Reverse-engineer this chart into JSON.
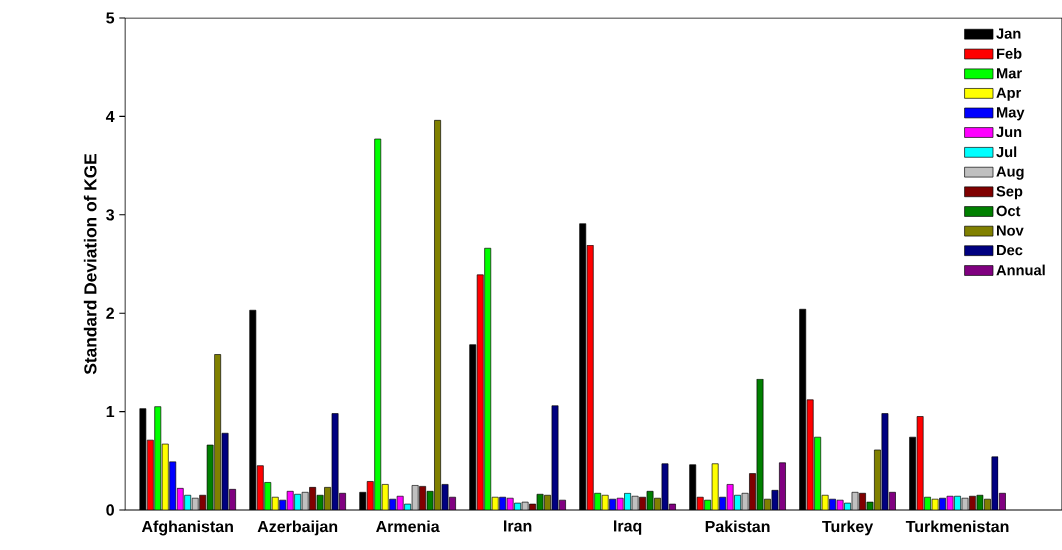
{
  "chart_data": {
    "type": "bar",
    "ylabel": "Standard Deviation of KGE",
    "categories": [
      "Afghanistan",
      "Azerbaijan",
      "Armenia",
      "Iran",
      "Iraq",
      "Pakistan",
      "Turkey",
      "Turkmenistan"
    ],
    "ylim": [
      0,
      5
    ],
    "yticks": [
      0,
      1,
      2,
      3,
      4,
      5
    ],
    "legend": "top right",
    "series": [
      {
        "name": "Jan",
        "color": "#000000",
        "values": [
          1.03,
          2.03,
          0.18,
          1.68,
          2.91,
          0.46,
          2.04,
          0.74
        ]
      },
      {
        "name": "Feb",
        "color": "#ff0000",
        "values": [
          0.71,
          0.45,
          0.29,
          2.39,
          2.69,
          0.13,
          1.12,
          0.95
        ]
      },
      {
        "name": "Mar",
        "color": "#00ff00",
        "values": [
          1.05,
          0.28,
          3.77,
          2.66,
          0.17,
          0.1,
          0.74,
          0.13
        ]
      },
      {
        "name": "Apr",
        "color": "#ffff00",
        "values": [
          0.67,
          0.13,
          0.26,
          0.13,
          0.15,
          0.47,
          0.15,
          0.11
        ]
      },
      {
        "name": "May",
        "color": "#0000ff",
        "values": [
          0.49,
          0.1,
          0.11,
          0.13,
          0.11,
          0.13,
          0.11,
          0.12
        ]
      },
      {
        "name": "Jun",
        "color": "#ff00ff",
        "values": [
          0.22,
          0.19,
          0.14,
          0.12,
          0.12,
          0.26,
          0.1,
          0.14
        ]
      },
      {
        "name": "Jul",
        "color": "#00ffff",
        "values": [
          0.15,
          0.16,
          0.06,
          0.07,
          0.17,
          0.15,
          0.07,
          0.14
        ]
      },
      {
        "name": "Aug",
        "color": "#c0c0c0",
        "values": [
          0.12,
          0.18,
          0.25,
          0.08,
          0.14,
          0.17,
          0.18,
          0.12
        ]
      },
      {
        "name": "Sep",
        "color": "#800000",
        "values": [
          0.15,
          0.23,
          0.24,
          0.06,
          0.13,
          0.37,
          0.17,
          0.14
        ]
      },
      {
        "name": "Oct",
        "color": "#008000",
        "values": [
          0.66,
          0.15,
          0.19,
          0.16,
          0.19,
          1.33,
          0.08,
          0.15
        ]
      },
      {
        "name": "Nov",
        "color": "#808000",
        "values": [
          1.58,
          0.23,
          3.96,
          0.15,
          0.12,
          0.11,
          0.61,
          0.11
        ]
      },
      {
        "name": "Dec",
        "color": "#000080",
        "values": [
          0.78,
          0.98,
          0.26,
          1.06,
          0.47,
          0.2,
          0.98,
          0.54
        ]
      },
      {
        "name": "Annual",
        "color": "#800080",
        "values": [
          0.21,
          0.17,
          0.13,
          0.1,
          0.06,
          0.48,
          0.18,
          0.17
        ]
      }
    ]
  }
}
